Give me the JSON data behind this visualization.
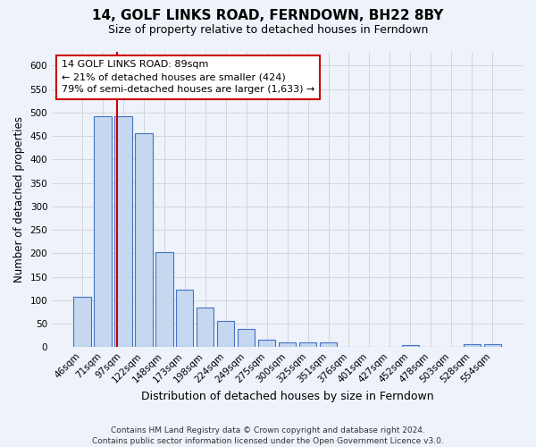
{
  "title": "14, GOLF LINKS ROAD, FERNDOWN, BH22 8BY",
  "subtitle": "Size of property relative to detached houses in Ferndown",
  "xlabel": "Distribution of detached houses by size in Ferndown",
  "ylabel": "Number of detached properties",
  "categories": [
    "46sqm",
    "71sqm",
    "97sqm",
    "122sqm",
    "148sqm",
    "173sqm",
    "198sqm",
    "224sqm",
    "249sqm",
    "275sqm",
    "300sqm",
    "325sqm",
    "351sqm",
    "376sqm",
    "401sqm",
    "427sqm",
    "452sqm",
    "478sqm",
    "503sqm",
    "528sqm",
    "554sqm"
  ],
  "values": [
    107,
    492,
    492,
    455,
    203,
    123,
    85,
    56,
    38,
    16,
    10,
    11,
    10,
    1,
    1,
    1,
    5,
    0,
    0,
    6,
    6
  ],
  "bar_color": "#c5d8f0",
  "bar_edge_color": "#4472c4",
  "bar_edge_width": 0.8,
  "vline_color": "#cc0000",
  "annotation_text": "14 GOLF LINKS ROAD: 89sqm\n← 21% of detached houses are smaller (424)\n79% of semi-detached houses are larger (1,633) →",
  "annotation_box_color": "#ffffff",
  "annotation_box_edge": "#cc0000",
  "ylim": [
    0,
    630
  ],
  "yticks": [
    0,
    50,
    100,
    150,
    200,
    250,
    300,
    350,
    400,
    450,
    500,
    550,
    600
  ],
  "footer": "Contains HM Land Registry data © Crown copyright and database right 2024.\nContains public sector information licensed under the Open Government Licence v3.0.",
  "title_fontsize": 11,
  "subtitle_fontsize": 9,
  "xlabel_fontsize": 9,
  "ylabel_fontsize": 8.5,
  "tick_fontsize": 7.5,
  "annotation_fontsize": 8,
  "footer_fontsize": 6.5,
  "background_color": "#eef2fa",
  "grid_color": "#d0d0d0"
}
